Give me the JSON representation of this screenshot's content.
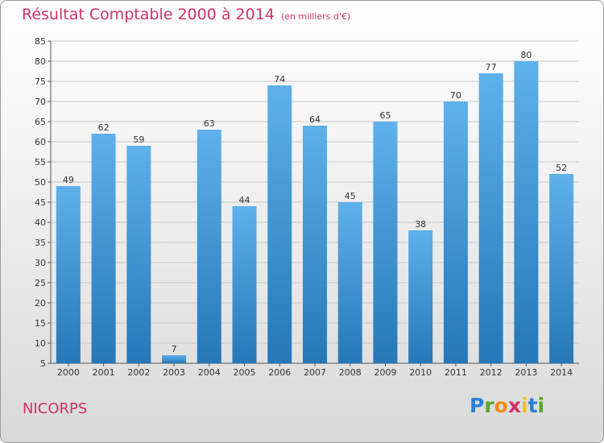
{
  "chart_data": {
    "type": "bar",
    "title": "Résultat Comptable 2000 à 2014",
    "subtitle": "(en milliers d'€)",
    "categories": [
      "2000",
      "2001",
      "2002",
      "2003",
      "2004",
      "2005",
      "2006",
      "2007",
      "2008",
      "2009",
      "2010",
      "2011",
      "2012",
      "2013",
      "2014"
    ],
    "values": [
      49,
      62,
      59,
      7,
      63,
      44,
      74,
      64,
      45,
      65,
      38,
      70,
      77,
      80,
      52
    ],
    "ylim": [
      5,
      85
    ],
    "yticks": [
      5,
      10,
      15,
      20,
      25,
      30,
      35,
      40,
      45,
      50,
      55,
      60,
      65,
      70,
      75,
      80,
      85
    ],
    "xlabel": "",
    "ylabel": "",
    "grid": true
  },
  "footer": {
    "commune": "NICORPS",
    "logo": {
      "letters": [
        "P",
        "r",
        "o",
        "x",
        "i",
        "t",
        "i"
      ],
      "colors": [
        "#2a7fd4",
        "#5aa52a",
        "#f28a1a",
        "#d0306a",
        "#f2c21a",
        "#2a7fd4",
        "#5aa52a"
      ]
    }
  },
  "colors": {
    "title": "#d0306a",
    "bar_top": "#5eb1ea",
    "bar_bottom": "#2577b8",
    "grid": "#c8c8c8"
  }
}
